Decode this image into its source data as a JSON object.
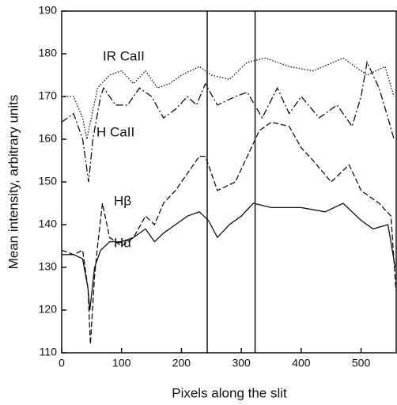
{
  "chart_data": {
    "type": "line",
    "xlabel": "Pixels along the slit",
    "ylabel": "Mean intensity, arbitrary units",
    "xlim": [
      0,
      560
    ],
    "ylim": [
      110,
      190
    ],
    "xticks": [
      0,
      100,
      200,
      300,
      400,
      500
    ],
    "yticks": [
      110,
      120,
      130,
      140,
      150,
      160,
      170,
      180,
      190
    ],
    "vlines": [
      243,
      323
    ],
    "series": [
      {
        "name": "IR CaII",
        "color": "#111111",
        "dash": "dotted",
        "x": [
          0,
          20,
          35,
          42,
          60,
          80,
          100,
          120,
          140,
          160,
          180,
          200,
          230,
          250,
          280,
          310,
          340,
          380,
          420,
          470,
          490,
          510,
          540,
          555
        ],
        "values": [
          170,
          170,
          165,
          160,
          172,
          175,
          176,
          173,
          176,
          172,
          173,
          175,
          177,
          175,
          174,
          178,
          179,
          177,
          176,
          179,
          177,
          175,
          177,
          170
        ]
      },
      {
        "name": "H CaII",
        "color": "#111111",
        "dash": "dashdot",
        "x": [
          0,
          20,
          35,
          45,
          52,
          65,
          70,
          90,
          110,
          130,
          150,
          170,
          190,
          210,
          225,
          240,
          260,
          290,
          310,
          335,
          360,
          380,
          400,
          430,
          460,
          485,
          500,
          510,
          530,
          545,
          555
        ],
        "values": [
          164,
          166,
          160,
          150,
          160,
          170,
          172,
          168,
          168,
          172,
          170,
          165,
          167,
          170,
          168,
          173,
          168,
          170,
          171,
          165,
          172,
          166,
          170,
          165,
          168,
          163,
          170,
          178,
          172,
          165,
          160
        ]
      },
      {
        "name": "Hβ",
        "color": "#111111",
        "dash": "dashed",
        "x": [
          0,
          20,
          35,
          44,
          48,
          55,
          60,
          68,
          80,
          100,
          120,
          140,
          155,
          170,
          190,
          210,
          230,
          240,
          260,
          290,
          310,
          330,
          350,
          380,
          400,
          420,
          450,
          480,
          500,
          530,
          550,
          558
        ],
        "values": [
          134,
          133,
          134,
          125,
          112,
          128,
          135,
          145,
          137,
          135,
          137,
          142,
          140,
          145,
          148,
          152,
          156,
          156,
          148,
          150,
          156,
          162,
          164,
          163,
          158,
          155,
          150,
          154,
          148,
          145,
          142,
          125
        ]
      },
      {
        "name": "Hα",
        "color": "#111111",
        "dash": "solid",
        "x": [
          0,
          20,
          35,
          44,
          47,
          55,
          65,
          80,
          100,
          120,
          140,
          155,
          170,
          190,
          210,
          230,
          245,
          260,
          280,
          300,
          320,
          350,
          400,
          440,
          470,
          500,
          520,
          545,
          557
        ],
        "values": [
          133,
          133,
          132,
          125,
          120,
          130,
          134,
          136,
          136,
          137,
          139,
          136,
          138,
          140,
          142,
          143,
          141,
          137,
          140,
          142,
          145,
          144,
          144,
          143,
          145,
          141,
          139,
          140,
          130
        ]
      }
    ]
  }
}
